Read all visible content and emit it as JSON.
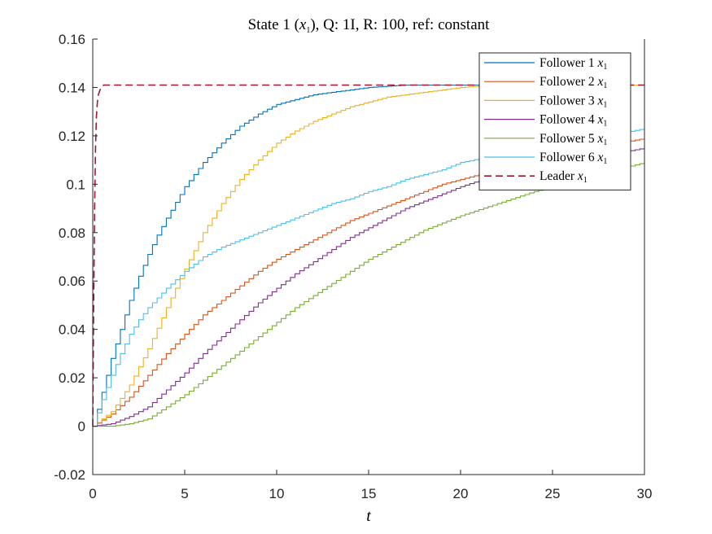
{
  "chart_data": {
    "type": "line",
    "title_parts": {
      "pre": "State 1 (",
      "var": "x",
      "sub": "1",
      "post": "), Q: 1I, R: 100, ref: constant"
    },
    "xlabel": "t",
    "ylabel": "",
    "xlim": [
      0,
      30
    ],
    "ylim": [
      -0.02,
      0.16
    ],
    "xticks": [
      0,
      5,
      10,
      15,
      20,
      25,
      30
    ],
    "yticks": [
      -0.02,
      0,
      0.02,
      0.04,
      0.06,
      0.08,
      0.1,
      0.12,
      0.14,
      0.16
    ],
    "xtick_labels": [
      "0",
      "5",
      "10",
      "15",
      "20",
      "25",
      "30"
    ],
    "ytick_labels": [
      "-0.02",
      "0",
      "0.02",
      "0.04",
      "0.06",
      "0.08",
      "0.1",
      "0.12",
      "0.14",
      "0.16"
    ],
    "grid": false,
    "legend_position": "top-right",
    "series": [
      {
        "name": "Follower 1",
        "var": "x",
        "sub": "1",
        "color": "#0072BD",
        "dash": false,
        "x": [
          0,
          0.5,
          1,
          1.5,
          2,
          2.5,
          3,
          3.5,
          4,
          5,
          6,
          7,
          8,
          9,
          10,
          11,
          12,
          13,
          14,
          15,
          16,
          17,
          18,
          19,
          20,
          22,
          24,
          26,
          28,
          30
        ],
        "y": [
          0,
          0.014,
          0.028,
          0.04,
          0.052,
          0.062,
          0.071,
          0.079,
          0.086,
          0.099,
          0.109,
          0.117,
          0.124,
          0.129,
          0.133,
          0.135,
          0.137,
          0.138,
          0.139,
          0.14,
          0.1405,
          0.141,
          0.141,
          0.141,
          0.141,
          0.141,
          0.141,
          0.141,
          0.141,
          0.141
        ]
      },
      {
        "name": "Follower 2",
        "var": "x",
        "sub": "1",
        "color": "#D95319",
        "dash": false,
        "x": [
          0,
          1,
          2,
          3,
          4,
          5,
          6,
          7,
          8,
          9,
          10,
          11,
          12,
          13,
          14,
          15,
          16,
          17,
          18,
          19,
          20,
          22,
          24,
          26,
          28,
          30
        ],
        "y": [
          0,
          0.005,
          0.012,
          0.021,
          0.03,
          0.038,
          0.046,
          0.052,
          0.058,
          0.064,
          0.069,
          0.073,
          0.077,
          0.081,
          0.085,
          0.088,
          0.091,
          0.094,
          0.097,
          0.1,
          0.102,
          0.106,
          0.11,
          0.113,
          0.116,
          0.119
        ]
      },
      {
        "name": "Follower 3",
        "var": "x",
        "sub": "1",
        "color": "#EDB120",
        "dash": false,
        "x": [
          0,
          1,
          2,
          3,
          4,
          5,
          6,
          7,
          8,
          9,
          10,
          11,
          12,
          13,
          14,
          15,
          16,
          17,
          18,
          19,
          20,
          22,
          24,
          26,
          28,
          30
        ],
        "y": [
          0,
          0.006,
          0.017,
          0.032,
          0.049,
          0.065,
          0.08,
          0.092,
          0.102,
          0.11,
          0.117,
          0.122,
          0.126,
          0.129,
          0.132,
          0.134,
          0.136,
          0.137,
          0.138,
          0.139,
          0.14,
          0.141,
          0.141,
          0.141,
          0.141,
          0.141
        ]
      },
      {
        "name": "Follower 4",
        "var": "x",
        "sub": "1",
        "color": "#7E2F8E",
        "dash": false,
        "x": [
          0,
          1,
          2,
          3,
          4,
          5,
          6,
          7,
          8,
          9,
          10,
          11,
          12,
          13,
          14,
          15,
          16,
          17,
          18,
          19,
          20,
          22,
          24,
          26,
          28,
          30
        ],
        "y": [
          0,
          0.001,
          0.004,
          0.008,
          0.015,
          0.022,
          0.03,
          0.037,
          0.044,
          0.051,
          0.057,
          0.063,
          0.068,
          0.073,
          0.078,
          0.082,
          0.086,
          0.09,
          0.093,
          0.096,
          0.099,
          0.104,
          0.107,
          0.11,
          0.112,
          0.115
        ]
      },
      {
        "name": "Follower 5",
        "var": "x",
        "sub": "1",
        "color": "#77AC30",
        "dash": false,
        "x": [
          0,
          1,
          2,
          3,
          4,
          5,
          6,
          7,
          8,
          9,
          10,
          11,
          12,
          13,
          14,
          15,
          16,
          17,
          18,
          19,
          20,
          22,
          24,
          26,
          28,
          30
        ],
        "y": [
          0,
          0,
          0.001,
          0.003,
          0.008,
          0.013,
          0.019,
          0.025,
          0.031,
          0.037,
          0.043,
          0.049,
          0.054,
          0.059,
          0.064,
          0.069,
          0.073,
          0.077,
          0.081,
          0.084,
          0.087,
          0.092,
          0.097,
          0.101,
          0.105,
          0.109
        ]
      },
      {
        "name": "Follower 6",
        "var": "x",
        "sub": "1",
        "color": "#4DBEEE",
        "dash": false,
        "x": [
          0,
          0.5,
          1,
          1.5,
          2,
          2.5,
          3,
          3.5,
          4,
          5,
          6,
          7,
          8,
          9,
          10,
          11,
          12,
          13,
          14,
          15,
          16,
          17,
          18,
          19,
          20,
          22,
          24,
          26,
          28,
          30
        ],
        "y": [
          0,
          0.011,
          0.021,
          0.03,
          0.038,
          0.044,
          0.049,
          0.053,
          0.057,
          0.064,
          0.07,
          0.074,
          0.077,
          0.08,
          0.083,
          0.086,
          0.089,
          0.092,
          0.094,
          0.097,
          0.099,
          0.102,
          0.104,
          0.106,
          0.109,
          0.112,
          0.115,
          0.118,
          0.12,
          0.123
        ]
      },
      {
        "name": "Leader",
        "var": "x",
        "sub": "1",
        "color": "#A2142F",
        "dash": true,
        "x": [
          0,
          0.05,
          0.1,
          0.15,
          0.2,
          0.25,
          0.3,
          0.4,
          0.5,
          0.6,
          0.8,
          1,
          2,
          5,
          10,
          15,
          20,
          25,
          30
        ],
        "y": [
          0,
          0.05,
          0.09,
          0.115,
          0.128,
          0.134,
          0.137,
          0.139,
          0.1405,
          0.141,
          0.141,
          0.141,
          0.141,
          0.141,
          0.141,
          0.141,
          0.141,
          0.141,
          0.141
        ]
      }
    ]
  }
}
